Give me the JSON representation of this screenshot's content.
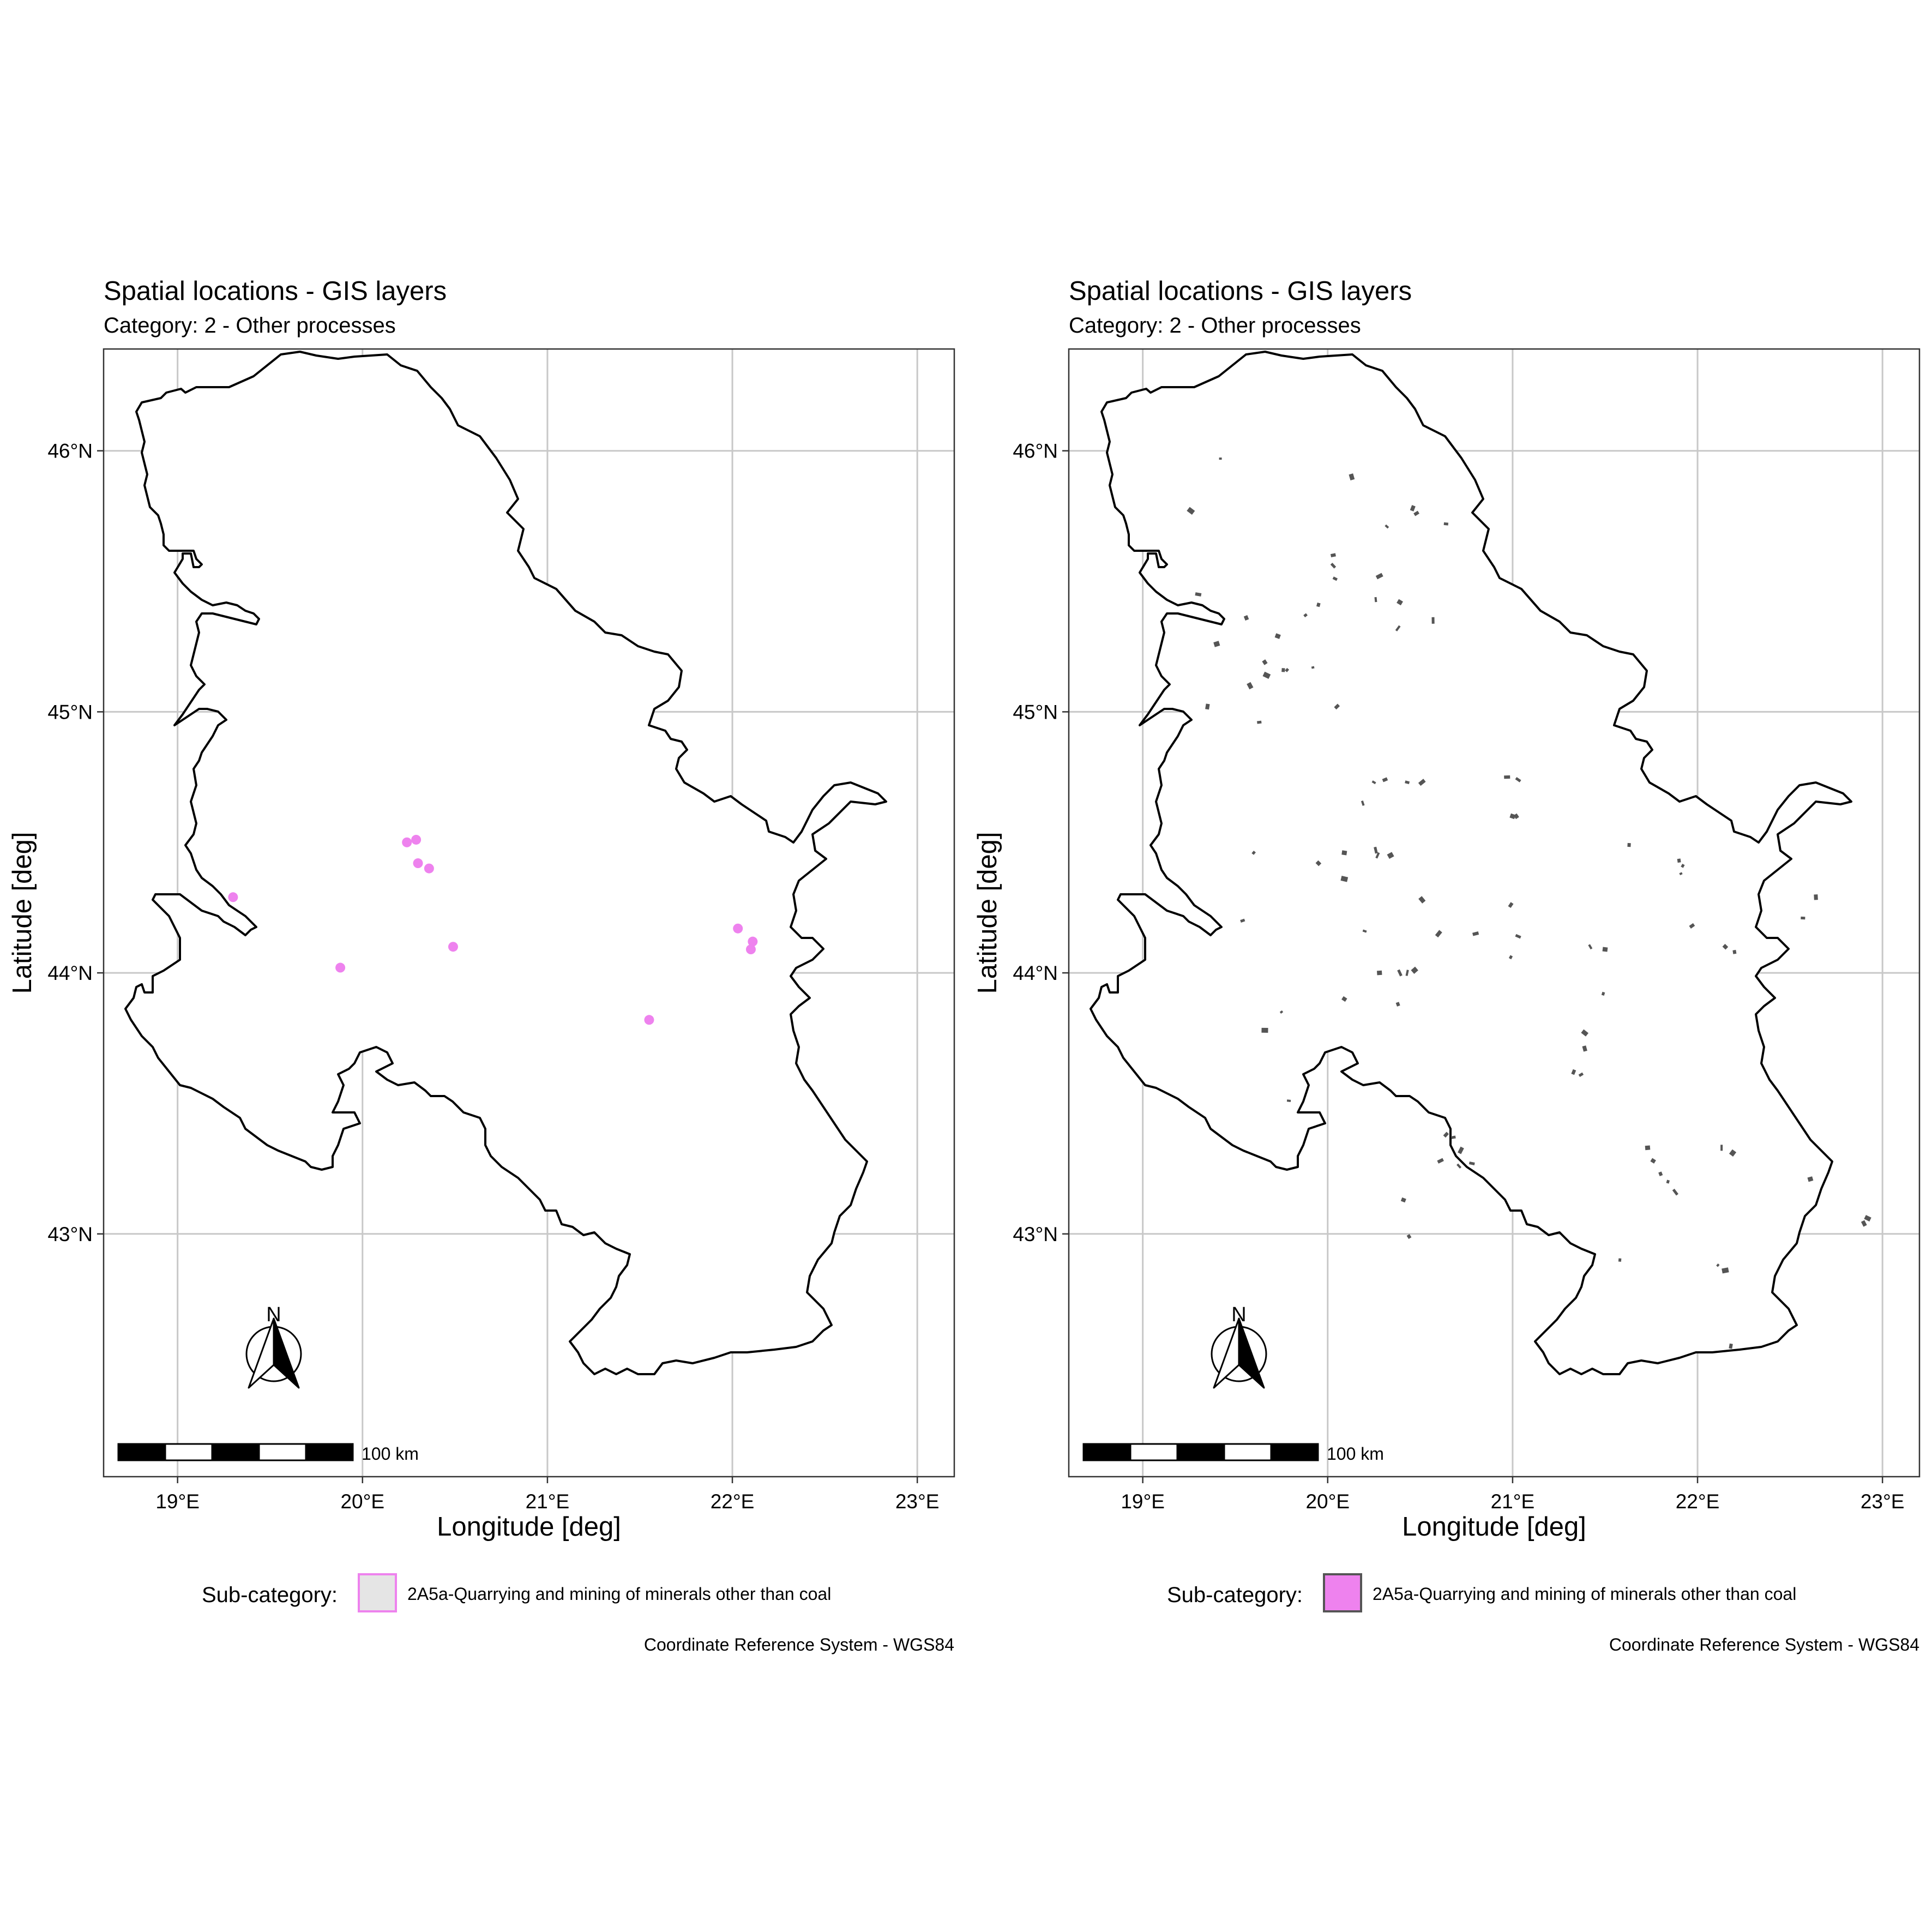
{
  "panels": [
    {
      "title": "Spatial locations - GIS layers",
      "subtitle": "Category: 2 - Other processes",
      "x_axis_label": "Longitude [deg]",
      "y_axis_label": "Latitude [deg]",
      "x_ticks": [
        {
          "value": 19,
          "label": "19°E"
        },
        {
          "value": 20,
          "label": "20°E"
        },
        {
          "value": 21,
          "label": "21°E"
        },
        {
          "value": 22,
          "label": "22°E"
        },
        {
          "value": 23,
          "label": "23°E"
        }
      ],
      "y_ticks": [
        {
          "value": 46,
          "label": "46°N"
        },
        {
          "value": 45,
          "label": "45°N"
        },
        {
          "value": 44,
          "label": "44°N"
        },
        {
          "value": 43,
          "label": "43°N"
        }
      ],
      "xlim": [
        18.6,
        23.2
      ],
      "ylim": [
        42.07,
        46.39
      ],
      "north_arrow_label": "N",
      "scale_bar_label": "100 km",
      "legend_title": "Sub-category:",
      "legend_item": "2A5a-Quarrying and mining of minerals other than coal",
      "legend_fill": "#e5e5e5",
      "legend_stroke": "#ee82ee",
      "crs_caption": "Coordinate Reference System - WGS84",
      "layer_type": "points",
      "feature_color": "#ee82ee",
      "features": [
        [
          19.3,
          44.29
        ],
        [
          19.88,
          44.02
        ],
        [
          20.24,
          44.5
        ],
        [
          20.29,
          44.51
        ],
        [
          20.3,
          44.42
        ],
        [
          20.36,
          44.4
        ],
        [
          20.49,
          44.1
        ],
        [
          21.55,
          43.82
        ],
        [
          22.03,
          44.17
        ],
        [
          22.1,
          44.09
        ],
        [
          22.11,
          44.12
        ]
      ]
    },
    {
      "title": "Spatial locations - GIS layers",
      "subtitle": "Category: 2 - Other processes",
      "x_axis_label": "Longitude [deg]",
      "y_axis_label": "Latitude [deg]",
      "x_ticks": [
        {
          "value": 19,
          "label": "19°E"
        },
        {
          "value": 20,
          "label": "20°E"
        },
        {
          "value": 21,
          "label": "21°E"
        },
        {
          "value": 22,
          "label": "22°E"
        },
        {
          "value": 23,
          "label": "23°E"
        }
      ],
      "y_ticks": [
        {
          "value": 46,
          "label": "46°N"
        },
        {
          "value": 45,
          "label": "45°N"
        },
        {
          "value": 44,
          "label": "44°N"
        },
        {
          "value": 43,
          "label": "43°N"
        }
      ],
      "xlim": [
        18.6,
        23.2
      ],
      "ylim": [
        42.07,
        46.39
      ],
      "north_arrow_label": "N",
      "scale_bar_label": "100 km",
      "legend_title": "Sub-category:",
      "legend_item": "2A5a-Quarrying and mining of minerals other than coal",
      "legend_fill": "#ee82ee",
      "legend_stroke": "#555555",
      "crs_caption": "Coordinate Reference System - WGS84",
      "layer_type": "polygons",
      "feature_color": "#555555",
      "features": [
        [
          19.42,
          45.97
        ],
        [
          19.26,
          45.77
        ],
        [
          20.13,
          45.9
        ],
        [
          20.46,
          45.78
        ],
        [
          20.48,
          45.76
        ],
        [
          20.64,
          45.72
        ],
        [
          20.32,
          45.71
        ],
        [
          20.03,
          45.6
        ],
        [
          20.04,
          45.51
        ],
        [
          20.28,
          45.52
        ],
        [
          19.3,
          45.45
        ],
        [
          20.03,
          45.56
        ],
        [
          20.26,
          45.43
        ],
        [
          20.39,
          45.42
        ],
        [
          19.56,
          45.36
        ],
        [
          19.95,
          45.41
        ],
        [
          19.88,
          45.37
        ],
        [
          20.57,
          45.35
        ],
        [
          20.38,
          45.32
        ],
        [
          19.4,
          45.26
        ],
        [
          19.73,
          45.29
        ],
        [
          19.66,
          45.19
        ],
        [
          19.76,
          45.16
        ],
        [
          19.78,
          45.16
        ],
        [
          19.92,
          45.17
        ],
        [
          19.67,
          45.14
        ],
        [
          19.58,
          45.1
        ],
        [
          19.35,
          45.02
        ],
        [
          20.05,
          45.02
        ],
        [
          19.63,
          44.96
        ],
        [
          20.25,
          44.73
        ],
        [
          20.31,
          44.74
        ],
        [
          20.43,
          44.73
        ],
        [
          20.51,
          44.73
        ],
        [
          20.97,
          44.75
        ],
        [
          21.03,
          44.74
        ],
        [
          20.19,
          44.65
        ],
        [
          21.0,
          44.6
        ],
        [
          21.02,
          44.6
        ],
        [
          21.63,
          44.49
        ],
        [
          19.6,
          44.46
        ],
        [
          20.26,
          44.47
        ],
        [
          20.27,
          44.45
        ],
        [
          20.34,
          44.45
        ],
        [
          20.09,
          44.46
        ],
        [
          19.95,
          44.42
        ],
        [
          21.9,
          44.43
        ],
        [
          21.92,
          44.41
        ],
        [
          21.91,
          44.38
        ],
        [
          20.09,
          44.36
        ],
        [
          20.51,
          44.28
        ],
        [
          22.64,
          44.29
        ],
        [
          20.99,
          44.26
        ],
        [
          19.54,
          44.2
        ],
        [
          20.2,
          44.16
        ],
        [
          21.97,
          44.18
        ],
        [
          22.57,
          44.21
        ],
        [
          20.6,
          44.15
        ],
        [
          20.8,
          44.15
        ],
        [
          21.03,
          44.14
        ],
        [
          21.42,
          44.1
        ],
        [
          21.5,
          44.09
        ],
        [
          22.15,
          44.1
        ],
        [
          22.2,
          44.08
        ],
        [
          20.99,
          44.06
        ],
        [
          20.39,
          44.0
        ],
        [
          20.43,
          44.0
        ],
        [
          20.47,
          44.01
        ],
        [
          20.28,
          44.0
        ],
        [
          20.09,
          43.9
        ],
        [
          20.38,
          43.88
        ],
        [
          21.49,
          43.92
        ],
        [
          19.75,
          43.85
        ],
        [
          19.66,
          43.78
        ],
        [
          21.39,
          43.77
        ],
        [
          21.39,
          43.71
        ],
        [
          21.33,
          43.62
        ],
        [
          21.37,
          43.61
        ],
        [
          19.79,
          43.51
        ],
        [
          20.64,
          43.38
        ],
        [
          20.68,
          43.37
        ],
        [
          20.72,
          43.32
        ],
        [
          20.61,
          43.28
        ],
        [
          20.78,
          43.27
        ],
        [
          20.71,
          43.26
        ],
        [
          21.73,
          43.33
        ],
        [
          21.76,
          43.28
        ],
        [
          21.8,
          43.23
        ],
        [
          21.84,
          43.2
        ],
        [
          21.88,
          43.16
        ],
        [
          22.13,
          43.33
        ],
        [
          22.19,
          43.31
        ],
        [
          22.61,
          43.21
        ],
        [
          20.41,
          43.13
        ],
        [
          20.44,
          42.99
        ],
        [
          21.58,
          42.9
        ],
        [
          22.11,
          42.88
        ],
        [
          22.15,
          42.86
        ],
        [
          22.92,
          43.06
        ],
        [
          22.9,
          43.04
        ],
        [
          22.18,
          42.57
        ]
      ]
    }
  ]
}
